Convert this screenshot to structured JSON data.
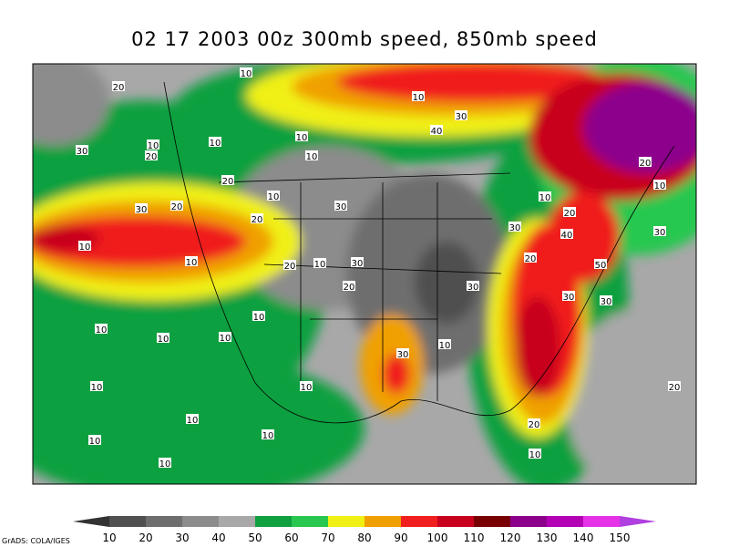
{
  "title": "02 17 2003 00z 300mb speed, 850mb speed",
  "colorbar": {
    "levels": [
      10,
      20,
      30,
      40,
      50,
      60,
      70,
      80,
      90,
      100,
      110,
      120,
      130,
      140,
      150
    ],
    "colors": [
      "#333333",
      "#505050",
      "#6e6e6e",
      "#8c8c8c",
      "#a8a8a8",
      "#10a040",
      "#28c850",
      "#f0f014",
      "#f0a000",
      "#f01e1e",
      "#c8001e",
      "#780000",
      "#8c008c",
      "#b400b4",
      "#e632e6",
      "#b040e0"
    ]
  },
  "contour_labels": [
    "20",
    "10",
    "10",
    "30",
    "40",
    "30",
    "10",
    "20",
    "10",
    "10",
    "10",
    "20",
    "10",
    "30",
    "30",
    "20",
    "20",
    "10",
    "20",
    "30",
    "40",
    "20",
    "10",
    "30",
    "10",
    "10",
    "20",
    "10",
    "30",
    "20",
    "50",
    "20",
    "30",
    "30",
    "30",
    "10",
    "10",
    "10",
    "10",
    "10",
    "30",
    "10",
    "10",
    "20",
    "10",
    "10",
    "20",
    "10",
    "10",
    "10"
  ],
  "credit": "GrADS: COLA/IGES"
}
